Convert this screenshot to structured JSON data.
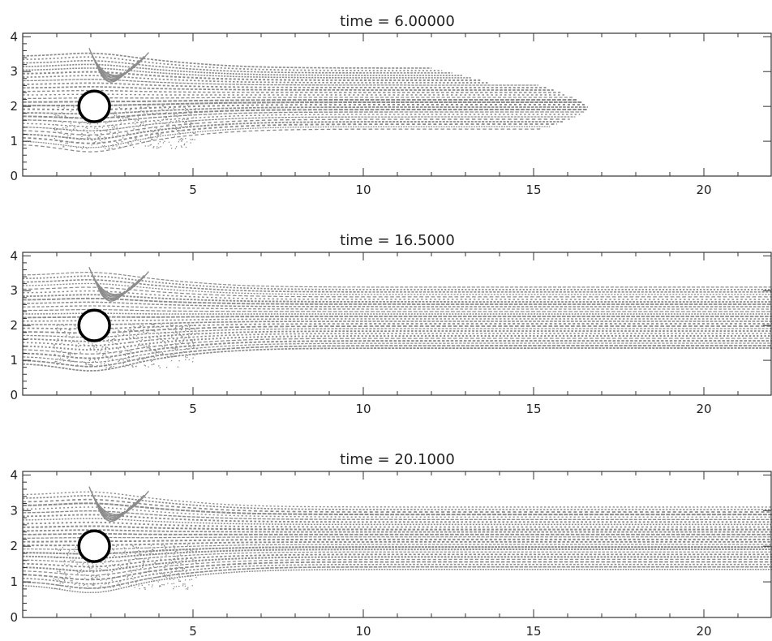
{
  "chart_data": [
    {
      "type": "scatter",
      "title": "time  =  6.00000",
      "time": 6.0,
      "front_x": 16.6,
      "xlim": [
        0,
        22
      ],
      "ylim": [
        0,
        4.1
      ],
      "xticks": [
        5,
        10,
        15,
        20
      ],
      "xtick_labels": [
        "5",
        "10",
        "15",
        "20"
      ],
      "yticks": [
        0,
        1,
        2,
        3,
        4
      ],
      "ytick_labels": [
        "0",
        "1",
        "2",
        "3",
        "4"
      ],
      "cylinder": {
        "cx": 2.1,
        "cy": 2.0,
        "r": 0.5
      },
      "streak_band": {
        "ymin": 0.75,
        "ymax": 3.45
      },
      "xlabel": "",
      "ylabel": ""
    },
    {
      "type": "scatter",
      "title": "time  =  16.5000",
      "time": 16.5,
      "front_x": 22,
      "xlim": [
        0,
        22
      ],
      "ylim": [
        0,
        4.1
      ],
      "xticks": [
        5,
        10,
        15,
        20
      ],
      "xtick_labels": [
        "5",
        "10",
        "15",
        "20"
      ],
      "yticks": [
        0,
        1,
        2,
        3,
        4
      ],
      "ytick_labels": [
        "0",
        "1",
        "2",
        "3",
        "4"
      ],
      "cylinder": {
        "cx": 2.1,
        "cy": 2.0,
        "r": 0.5
      },
      "streak_band": {
        "ymin": 0.75,
        "ymax": 3.45
      },
      "xlabel": "",
      "ylabel": ""
    },
    {
      "type": "scatter",
      "title": "time  =  20.1000",
      "time": 20.1,
      "front_x": 22,
      "xlim": [
        0,
        22
      ],
      "ylim": [
        0,
        4.1
      ],
      "xticks": [
        5,
        10,
        15,
        20
      ],
      "xtick_labels": [
        "5",
        "10",
        "15",
        "20"
      ],
      "yticks": [
        0,
        1,
        2,
        3,
        4
      ],
      "ytick_labels": [
        "0",
        "1",
        "2",
        "3",
        "4"
      ],
      "cylinder": {
        "cx": 2.1,
        "cy": 2.0,
        "r": 0.5
      },
      "streak_band": {
        "ymin": 0.75,
        "ymax": 3.45
      },
      "xlabel": "",
      "ylabel": ""
    }
  ],
  "colors": {
    "streak": "#8c8c8c",
    "frame": "#333333",
    "cylinder_edge": "#000000",
    "background": "#ffffff"
  }
}
